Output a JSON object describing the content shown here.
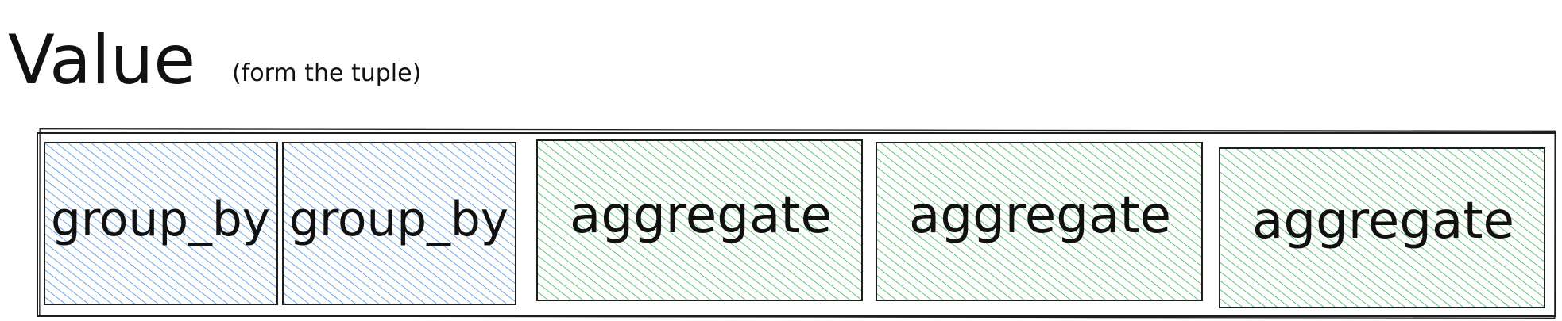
{
  "title": {
    "main": "Value",
    "note": "(form the tuple)"
  },
  "tuple": {
    "cells": [
      {
        "label": "group_by",
        "kind": "group_by"
      },
      {
        "label": "group_by",
        "kind": "group_by"
      },
      {
        "label": "aggregate",
        "kind": "aggregate"
      },
      {
        "label": "aggregate",
        "kind": "aggregate"
      },
      {
        "label": "aggregate",
        "kind": "aggregate"
      }
    ]
  },
  "colors": {
    "group_by_fill": "#4a8fe0",
    "aggregate_fill": "#3cb15a",
    "stroke": "#1e1e1e"
  }
}
